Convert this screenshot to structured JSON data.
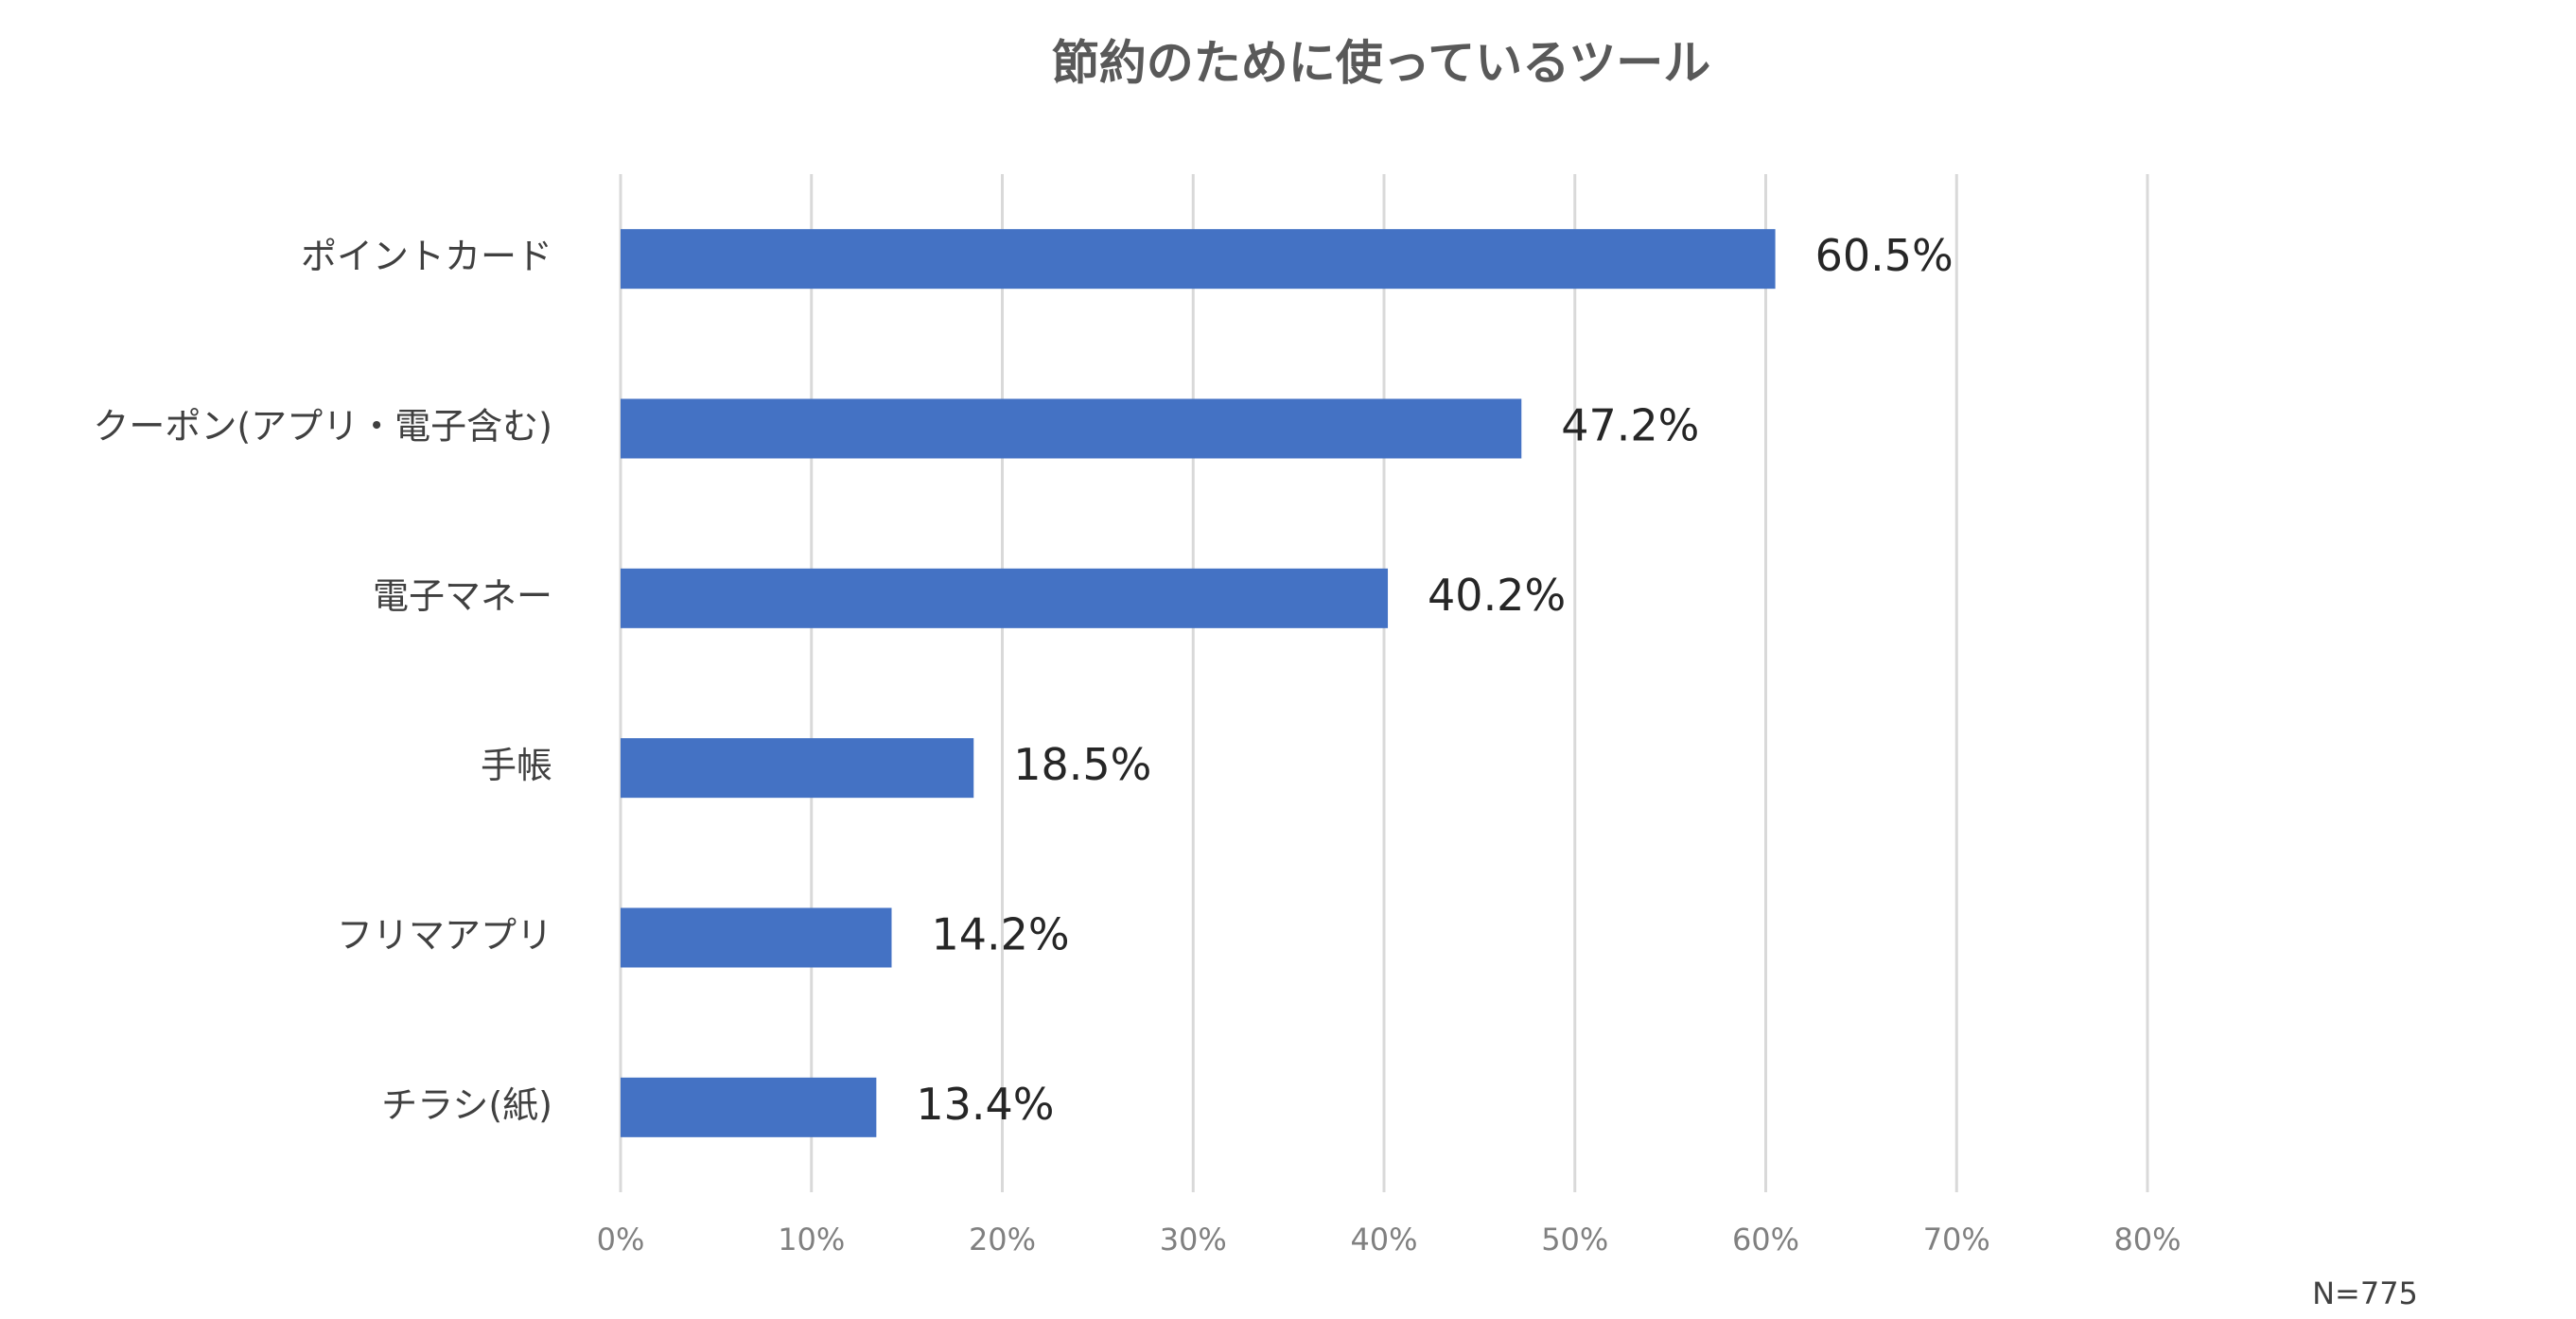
{
  "chart_data": {
    "type": "bar",
    "orientation": "horizontal",
    "title": "節約のために使っているツール",
    "categories": [
      "ポイントカード",
      "クーポン(アプリ・電子含む)",
      "電子マネー",
      "手帳",
      "フリマアプリ",
      "チラシ(紙)"
    ],
    "values": [
      60.5,
      47.2,
      40.2,
      18.5,
      14.2,
      13.4
    ],
    "value_labels": [
      "60.5%",
      "47.2%",
      "40.2%",
      "18.5%",
      "14.2%",
      "13.4%"
    ],
    "color": "#4472c4",
    "xlim": [
      0,
      80
    ],
    "xticks": [
      {
        "value": 0,
        "label": "0%"
      },
      {
        "value": 10,
        "label": "10%"
      },
      {
        "value": 20,
        "label": "20%"
      },
      {
        "value": 30,
        "label": "30%"
      },
      {
        "value": 40,
        "label": "40%"
      },
      {
        "value": 50,
        "label": "50%"
      },
      {
        "value": 60,
        "label": "60%"
      },
      {
        "value": 70,
        "label": "70%"
      },
      {
        "value": 80,
        "label": "80%"
      }
    ],
    "grid": true,
    "note": "N=775"
  }
}
